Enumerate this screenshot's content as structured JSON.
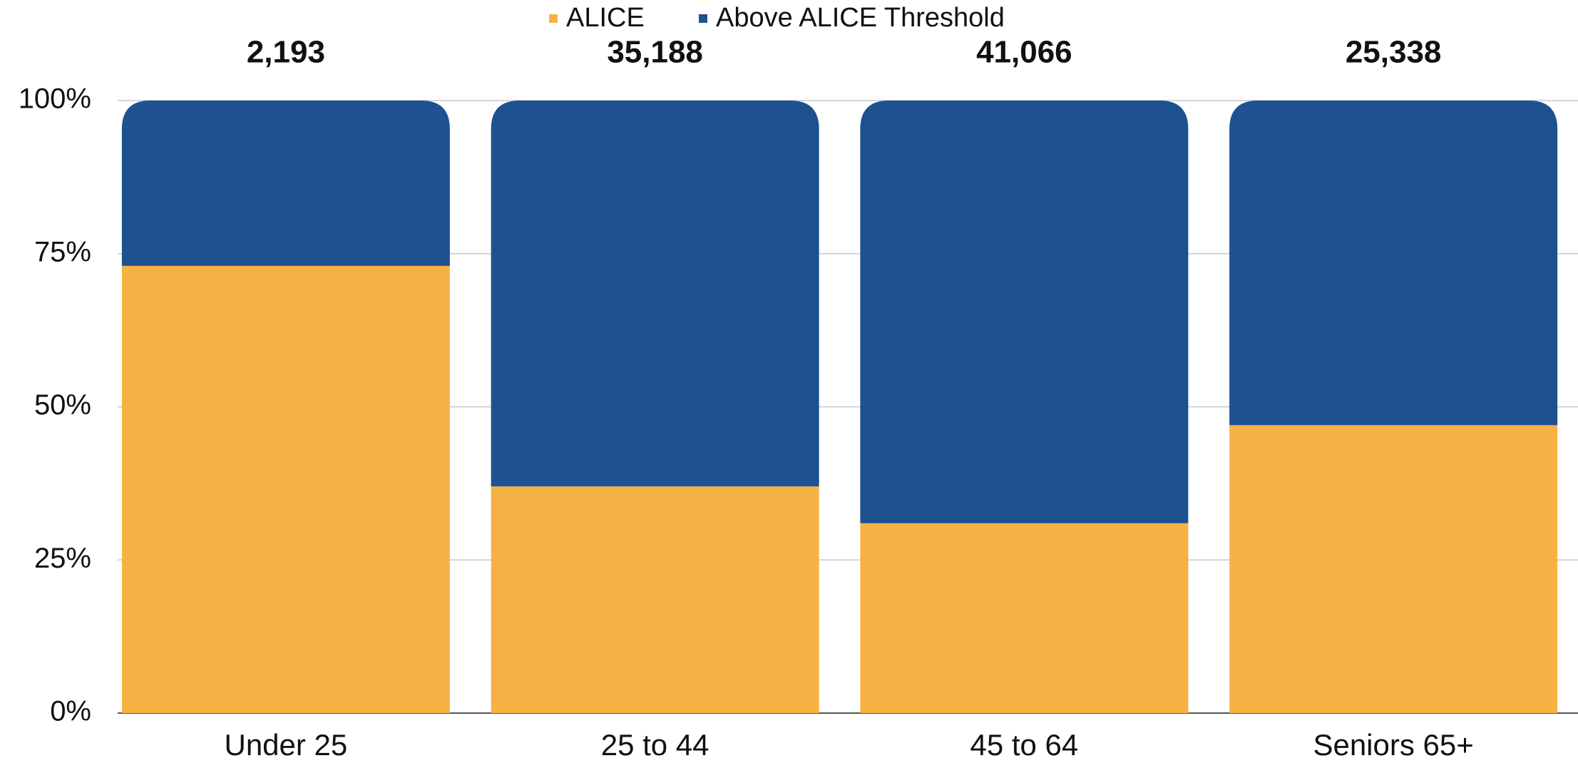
{
  "chart_data": {
    "type": "stacked_bar",
    "categories": [
      "Under 25",
      "25 to 44",
      "45 to 64",
      "Seniors 65+"
    ],
    "series": [
      {
        "name": "ALICE",
        "color": "#f7b246",
        "values": [
          73,
          37,
          31,
          47
        ]
      },
      {
        "name": "Above ALICE Threshold",
        "color": "#1d5190",
        "values": [
          27,
          63,
          69,
          53
        ]
      }
    ],
    "totals": {
      "values": [
        2193,
        35188,
        41066,
        25338
      ],
      "value_labels": [
        "2,193",
        "35,188",
        "41,066",
        "25,338"
      ]
    },
    "ylim": [
      0,
      100
    ],
    "yticks": [
      {
        "value": 0,
        "label": "0%"
      },
      {
        "value": 25,
        "label": "25%"
      },
      {
        "value": 50,
        "label": "50%"
      },
      {
        "value": 75,
        "label": "75%"
      },
      {
        "value": 100,
        "label": "100%"
      }
    ],
    "grid": true,
    "legend": "top"
  }
}
